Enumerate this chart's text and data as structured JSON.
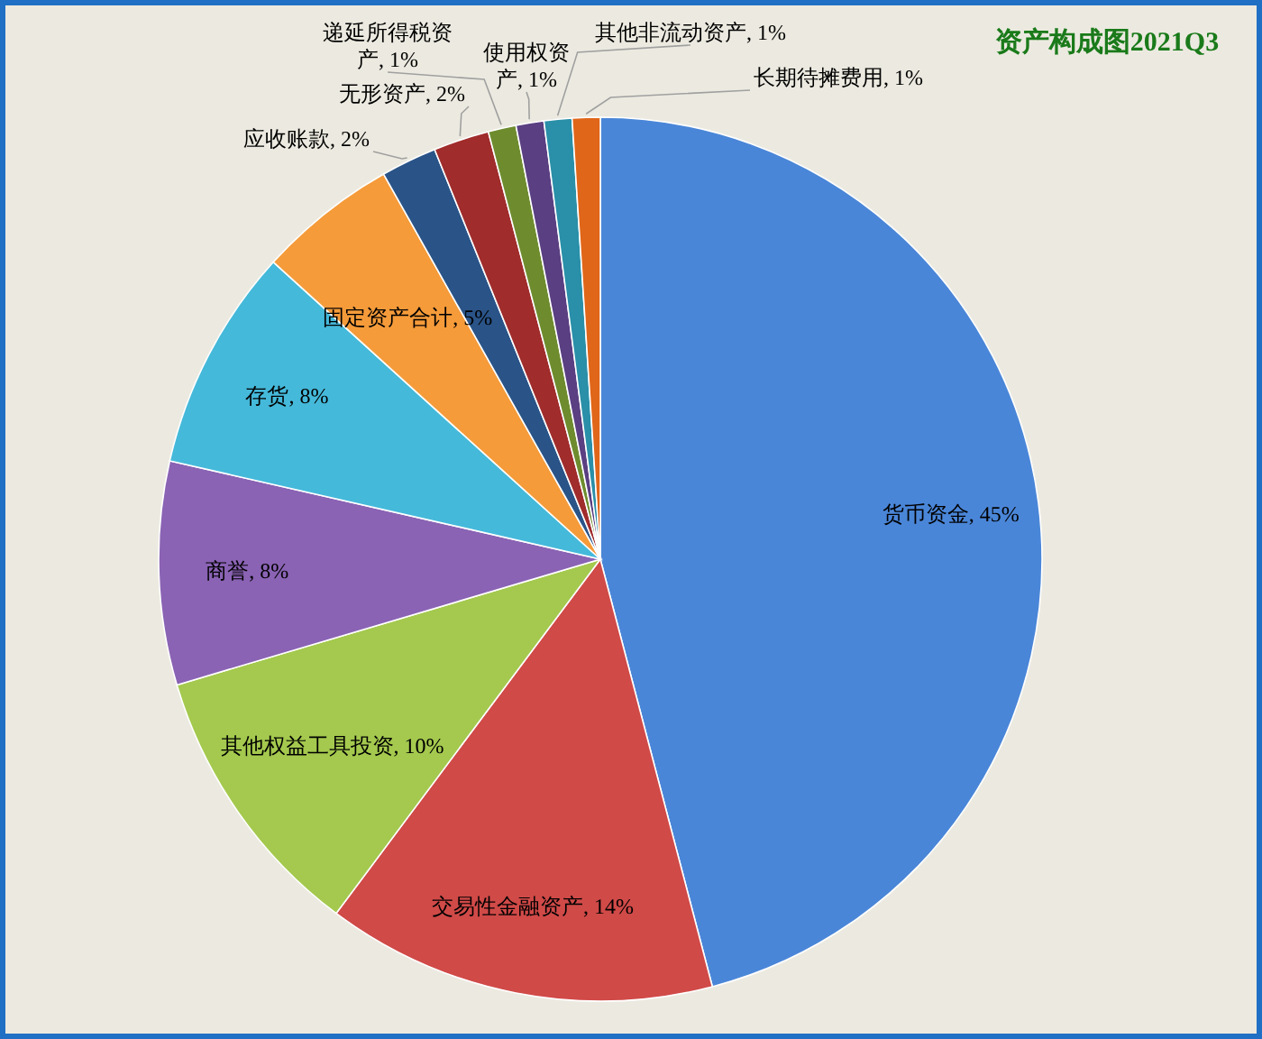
{
  "chart_data": {
    "type": "pie",
    "title": "资产构成图2021Q3",
    "categories": [
      "货币资金",
      "交易性金融资产",
      "其他权益工具投资",
      "商誉",
      "存货",
      "固定资产合计",
      "应收账款",
      "无形资产",
      "递延所得税资产",
      "使用权资产",
      "其他非流动资产",
      "长期待摊费用"
    ],
    "values": [
      45,
      14,
      10,
      8,
      8,
      5,
      2,
      2,
      1,
      1,
      1,
      1
    ],
    "value_labels": [
      "45%",
      "14%",
      "10%",
      "8%",
      "8%",
      "5%",
      "2%",
      "2%",
      "1%",
      "1%",
      "1%",
      "1%"
    ],
    "colors": [
      "#4a86d8",
      "#d04a48",
      "#a4c94e",
      "#8a63b4",
      "#45b9da",
      "#f59b3a",
      "#2a5488",
      "#a02c2c",
      "#6e8c2e",
      "#5a3f82",
      "#2a8fa8",
      "#e0661a"
    ],
    "data_labels": false
  }
}
